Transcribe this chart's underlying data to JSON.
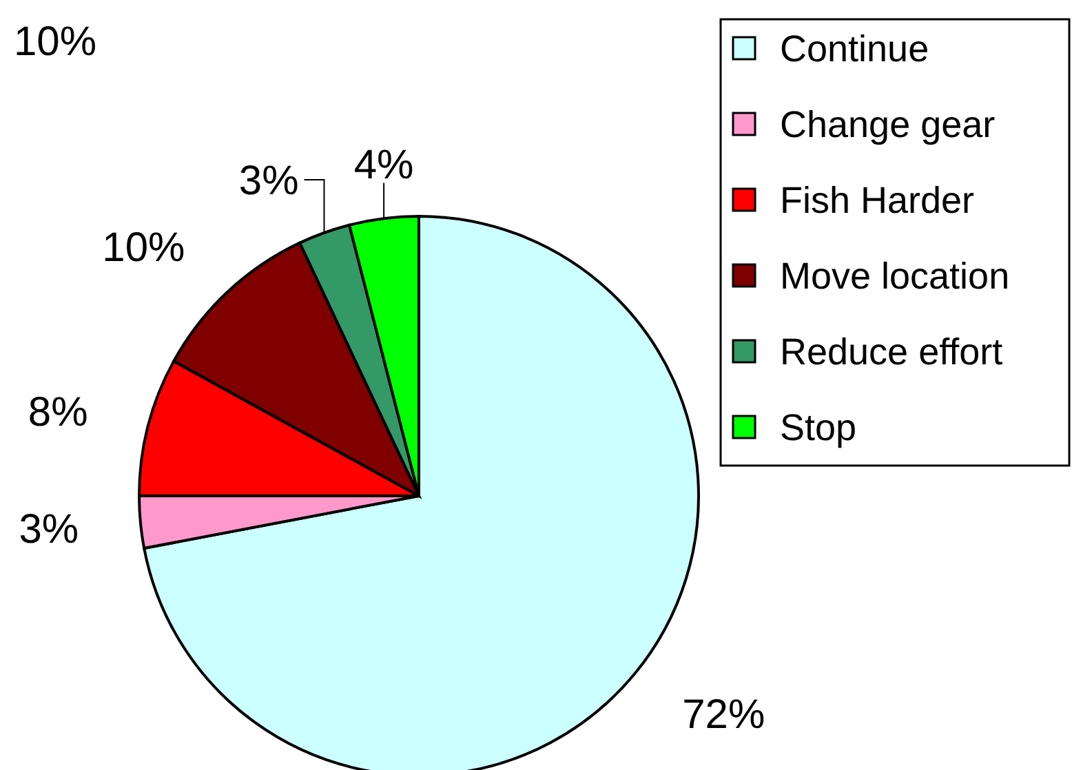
{
  "chart_data": {
    "type": "pie",
    "categories": [
      "Continue",
      "Change gear",
      "Fish Harder",
      "Move location",
      "Reduce effort",
      "Stop"
    ],
    "values": [
      72,
      3,
      8,
      10,
      3,
      4
    ],
    "colors": [
      "#ccffff",
      "#ff99cc",
      "#ff0000",
      "#800000",
      "#339966",
      "#00ff00"
    ],
    "value_labels": [
      "72%",
      "3%",
      "8%",
      "10%",
      "3%",
      "4%"
    ],
    "legend": "right",
    "annotations": [
      "10%"
    ]
  }
}
